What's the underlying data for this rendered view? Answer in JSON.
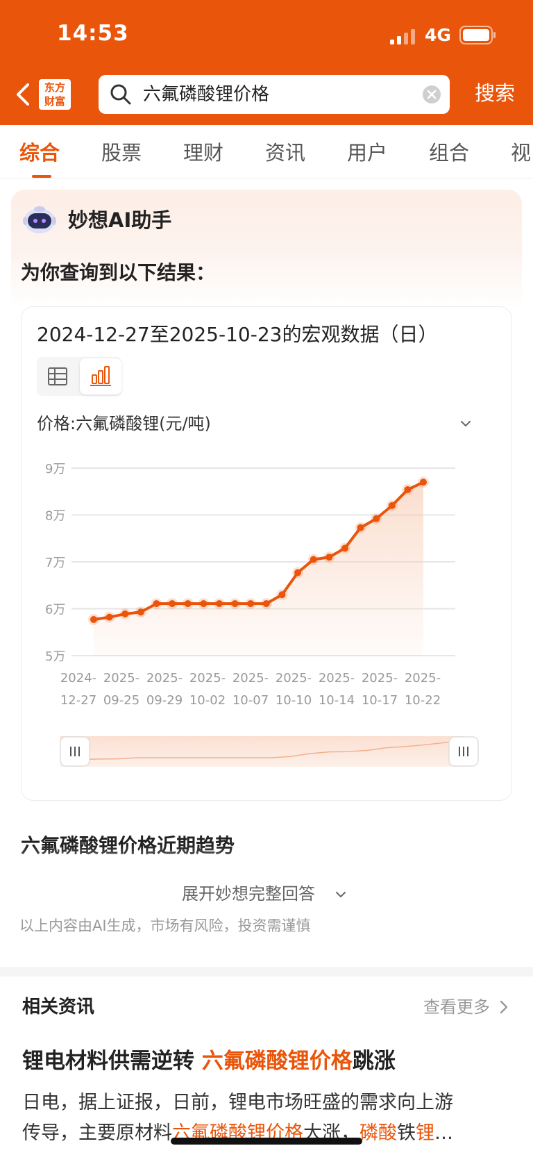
{
  "status_bar": {
    "time": "14:53",
    "network": "4G"
  },
  "header": {
    "logo_line1": "东方",
    "logo_line2": "财富",
    "search_query": "六氟磷酸锂价格",
    "search_button": "搜索"
  },
  "tabs": [
    {
      "label": "综合",
      "active": true
    },
    {
      "label": "股票"
    },
    {
      "label": "理财"
    },
    {
      "label": "资讯"
    },
    {
      "label": "用户"
    },
    {
      "label": "组合"
    },
    {
      "label": "视"
    }
  ],
  "ai_card": {
    "assistant_name": "妙想AI助手",
    "result_intro": "为你查询到以下结果：",
    "chart_title": "2024-12-27至2025-10-23的宏观数据（日）",
    "selector_label": "价格:六氟磷酸锂(元/吨)",
    "trend_heading": "六氟磷酸锂价格近期趋势",
    "expand_label": "展开妙想完整回答",
    "disclaimer": "以上内容由AI生成，市场有风险，投资需谨慎"
  },
  "chart_data": {
    "type": "line",
    "ylim": [
      50000,
      90000
    ],
    "y_ticks": [
      {
        "value": 90000,
        "label": "9万"
      },
      {
        "value": 80000,
        "label": "8万"
      },
      {
        "value": 70000,
        "label": "7万"
      },
      {
        "value": 60000,
        "label": "6万"
      },
      {
        "value": 50000,
        "label": "5万"
      }
    ],
    "x_tick_labels": [
      [
        "2024-",
        "12-27"
      ],
      [
        "2025-",
        "09-25"
      ],
      [
        "2025-",
        "09-29"
      ],
      [
        "2025-",
        "10-02"
      ],
      [
        "2025-",
        "10-07"
      ],
      [
        "2025-",
        "10-10"
      ],
      [
        "2025-",
        "10-14"
      ],
      [
        "2025-",
        "10-17"
      ],
      [
        "2025-",
        "10-22"
      ]
    ],
    "values": [
      57700,
      58200,
      58900,
      59300,
      61100,
      61100,
      61100,
      61100,
      61100,
      61100,
      61100,
      61100,
      63000,
      67700,
      70500,
      71000,
      72900,
      77300,
      79200,
      82000,
      85400,
      87000
    ],
    "colors": {
      "line": "#E9550A",
      "area_top": "#f6c3a6",
      "grid": "#e6e6e6",
      "tick_text": "#999999"
    }
  },
  "news": {
    "section_title": "相关资讯",
    "more_label": "查看更多",
    "title_part1": "锂电材料供需逆转",
    "title_highlight": "六氟磷酸锂价格",
    "title_part2": "跳涨",
    "body_line1": "日电，据上证报，日前，锂电市场旺盛的需求向上游",
    "body_line2_a": "传导，主要原材料",
    "body_line2_hl": "六氟磷酸锂价格",
    "body_line2_b": "大涨，",
    "body_line2_hl2": "磷酸",
    "body_line2_c": "铁",
    "body_line2_hl3": "锂",
    "body_line2_end": "…"
  }
}
